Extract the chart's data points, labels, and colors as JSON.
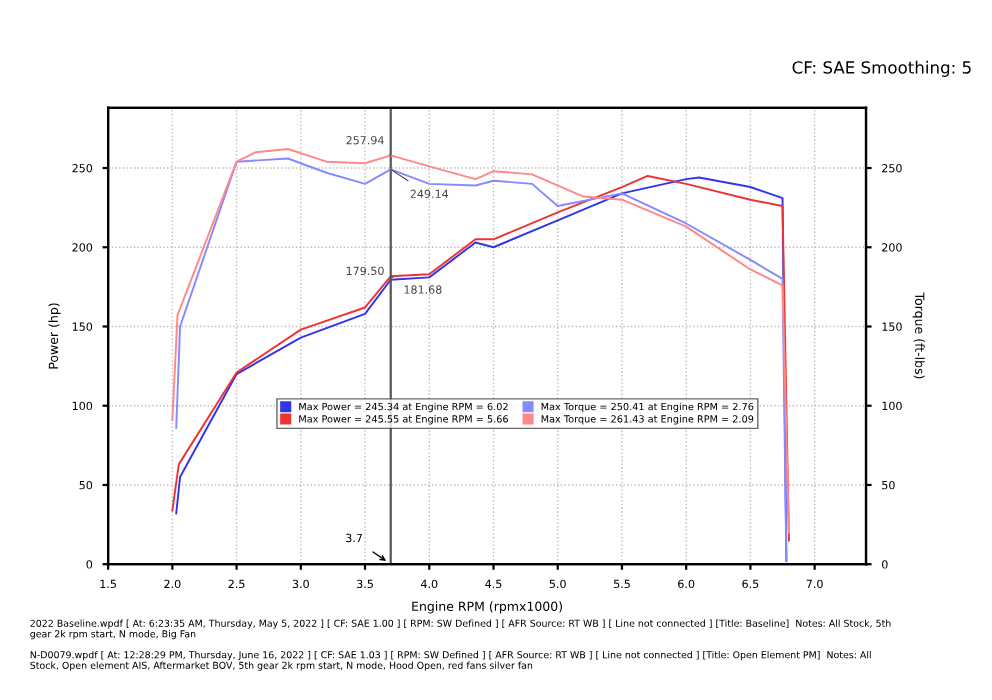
{
  "chart_data": {
    "type": "line",
    "title": "CF: SAE Smoothing: 5",
    "xlabel": "Engine RPM (rpmx1000)",
    "ylabel": "Power (hp)",
    "y2label": "Torque (ft-lbs)",
    "xlim": [
      1.5,
      7.4
    ],
    "ylim": [
      0,
      288
    ],
    "y2lim": [
      0,
      288
    ],
    "xticks": [
      {
        "value": 1.5,
        "label": "1.5"
      },
      {
        "value": 2,
        "label": "2.0"
      },
      {
        "value": 2.5,
        "label": "2.5"
      },
      {
        "value": 3,
        "label": "3.0"
      },
      {
        "value": 3.5,
        "label": "3.5"
      },
      {
        "value": 4,
        "label": "4.0"
      },
      {
        "value": 4.5,
        "label": "4.5"
      },
      {
        "value": 5,
        "label": "5.0"
      },
      {
        "value": 5.5,
        "label": "5.5"
      },
      {
        "value": 6,
        "label": "6.0"
      },
      {
        "value": 6.5,
        "label": "6.5"
      },
      {
        "value": 7,
        "label": "7.0"
      }
    ],
    "yticks": [
      0,
      50,
      100,
      150,
      200,
      250
    ],
    "y2ticks": [
      0,
      50,
      100,
      150,
      200,
      250
    ],
    "grid": true,
    "legend": "center",
    "line_style": "solid",
    "series": [
      {
        "name": "Max Power = 245.34 at Engine RPM = 6.02",
        "color": "#3333ee",
        "x": [
          2.03,
          2.06,
          2.5,
          3.0,
          3.5,
          3.7,
          4.0,
          4.36,
          4.5,
          5.0,
          5.5,
          6.0,
          6.1,
          6.5,
          6.75,
          6.78
        ],
        "values": [
          32,
          55,
          120,
          143,
          158,
          179.5,
          181,
          203,
          200,
          217,
          234,
          243,
          244,
          238,
          231,
          2
        ],
        "value_labels": [
          null,
          null,
          null,
          null,
          null,
          "179.50",
          null,
          null,
          null,
          null,
          null,
          null,
          null,
          null,
          null,
          null
        ]
      },
      {
        "name": "Max Power = 245.55 at Engine RPM = 5.66",
        "color": "#ee3333",
        "x": [
          2.0,
          2.05,
          2.5,
          3.0,
          3.5,
          3.7,
          4.0,
          4.36,
          4.5,
          5.0,
          5.5,
          5.7,
          6.0,
          6.5,
          6.75,
          6.8
        ],
        "values": [
          34,
          63,
          121,
          148,
          162,
          181.68,
          183,
          205,
          205,
          222,
          238,
          245,
          240,
          230,
          226,
          15
        ],
        "value_labels": [
          null,
          null,
          null,
          null,
          null,
          "181.68",
          null,
          null,
          null,
          null,
          null,
          null,
          null,
          null,
          null,
          null
        ]
      },
      {
        "name": "Max Torque = 250.41 at Engine RPM = 2.76",
        "color": "#8888ff",
        "axis": "y2",
        "x": [
          2.03,
          2.06,
          2.5,
          2.9,
          3.2,
          3.5,
          3.7,
          4.0,
          4.36,
          4.5,
          4.8,
          5.0,
          5.5,
          6.0,
          6.5,
          6.75,
          6.78
        ],
        "values": [
          86,
          150,
          254,
          256,
          247,
          240,
          249.14,
          240,
          239,
          242,
          240,
          226,
          234,
          215,
          192,
          180,
          2
        ],
        "value_labels": [
          null,
          null,
          null,
          null,
          null,
          null,
          "249.14",
          null,
          null,
          null,
          null,
          null,
          null,
          null,
          null,
          null,
          null
        ]
      },
      {
        "name": "Max Torque = 261.43 at Engine RPM = 2.09",
        "color": "#ff8888",
        "axis": "y2",
        "x": [
          2.0,
          2.04,
          2.5,
          2.65,
          2.9,
          3.2,
          3.5,
          3.7,
          4.0,
          4.36,
          4.5,
          4.8,
          5.2,
          5.5,
          6.0,
          6.5,
          6.75,
          6.8
        ],
        "values": [
          91,
          157,
          254,
          260,
          262,
          254,
          253,
          257.94,
          251,
          243,
          248,
          246,
          232,
          230,
          213,
          186,
          176,
          20
        ],
        "value_labels": [
          null,
          null,
          null,
          null,
          null,
          null,
          null,
          "257.94",
          null,
          null,
          null,
          null,
          null,
          null,
          null,
          null,
          null,
          null
        ]
      }
    ],
    "ref_lines": [
      {
        "axis": "x",
        "value": 3.7,
        "label": "3.7",
        "color": "#555555"
      }
    ],
    "annotations": [
      "2022 Baseline.wpdf [ At: 6:23:35 AM, Thursday, May 5, 2022 ] [ CF: SAE 1.00 ] [ RPM: SW Defined ] [ AFR Source: RT WB ] [ Line not connected ] [Title: Baseline]  Notes: All Stock, 5th gear 2k rpm start, N mode, Big Fan",
      "N-D0079.wpdf [ At: 12:28:29 PM, Thursday, June 16, 2022 ] [ CF: SAE 1.03 ] [ RPM: SW Defined ] [ AFR Source: RT WB ] [ Line not connected ] [Title: Open Element PM]  Notes: All Stock, Open element AIS, Aftermarket BOV, 5th gear 2k rpm start, N mode, Hood Open, red fans silver fan"
    ]
  }
}
